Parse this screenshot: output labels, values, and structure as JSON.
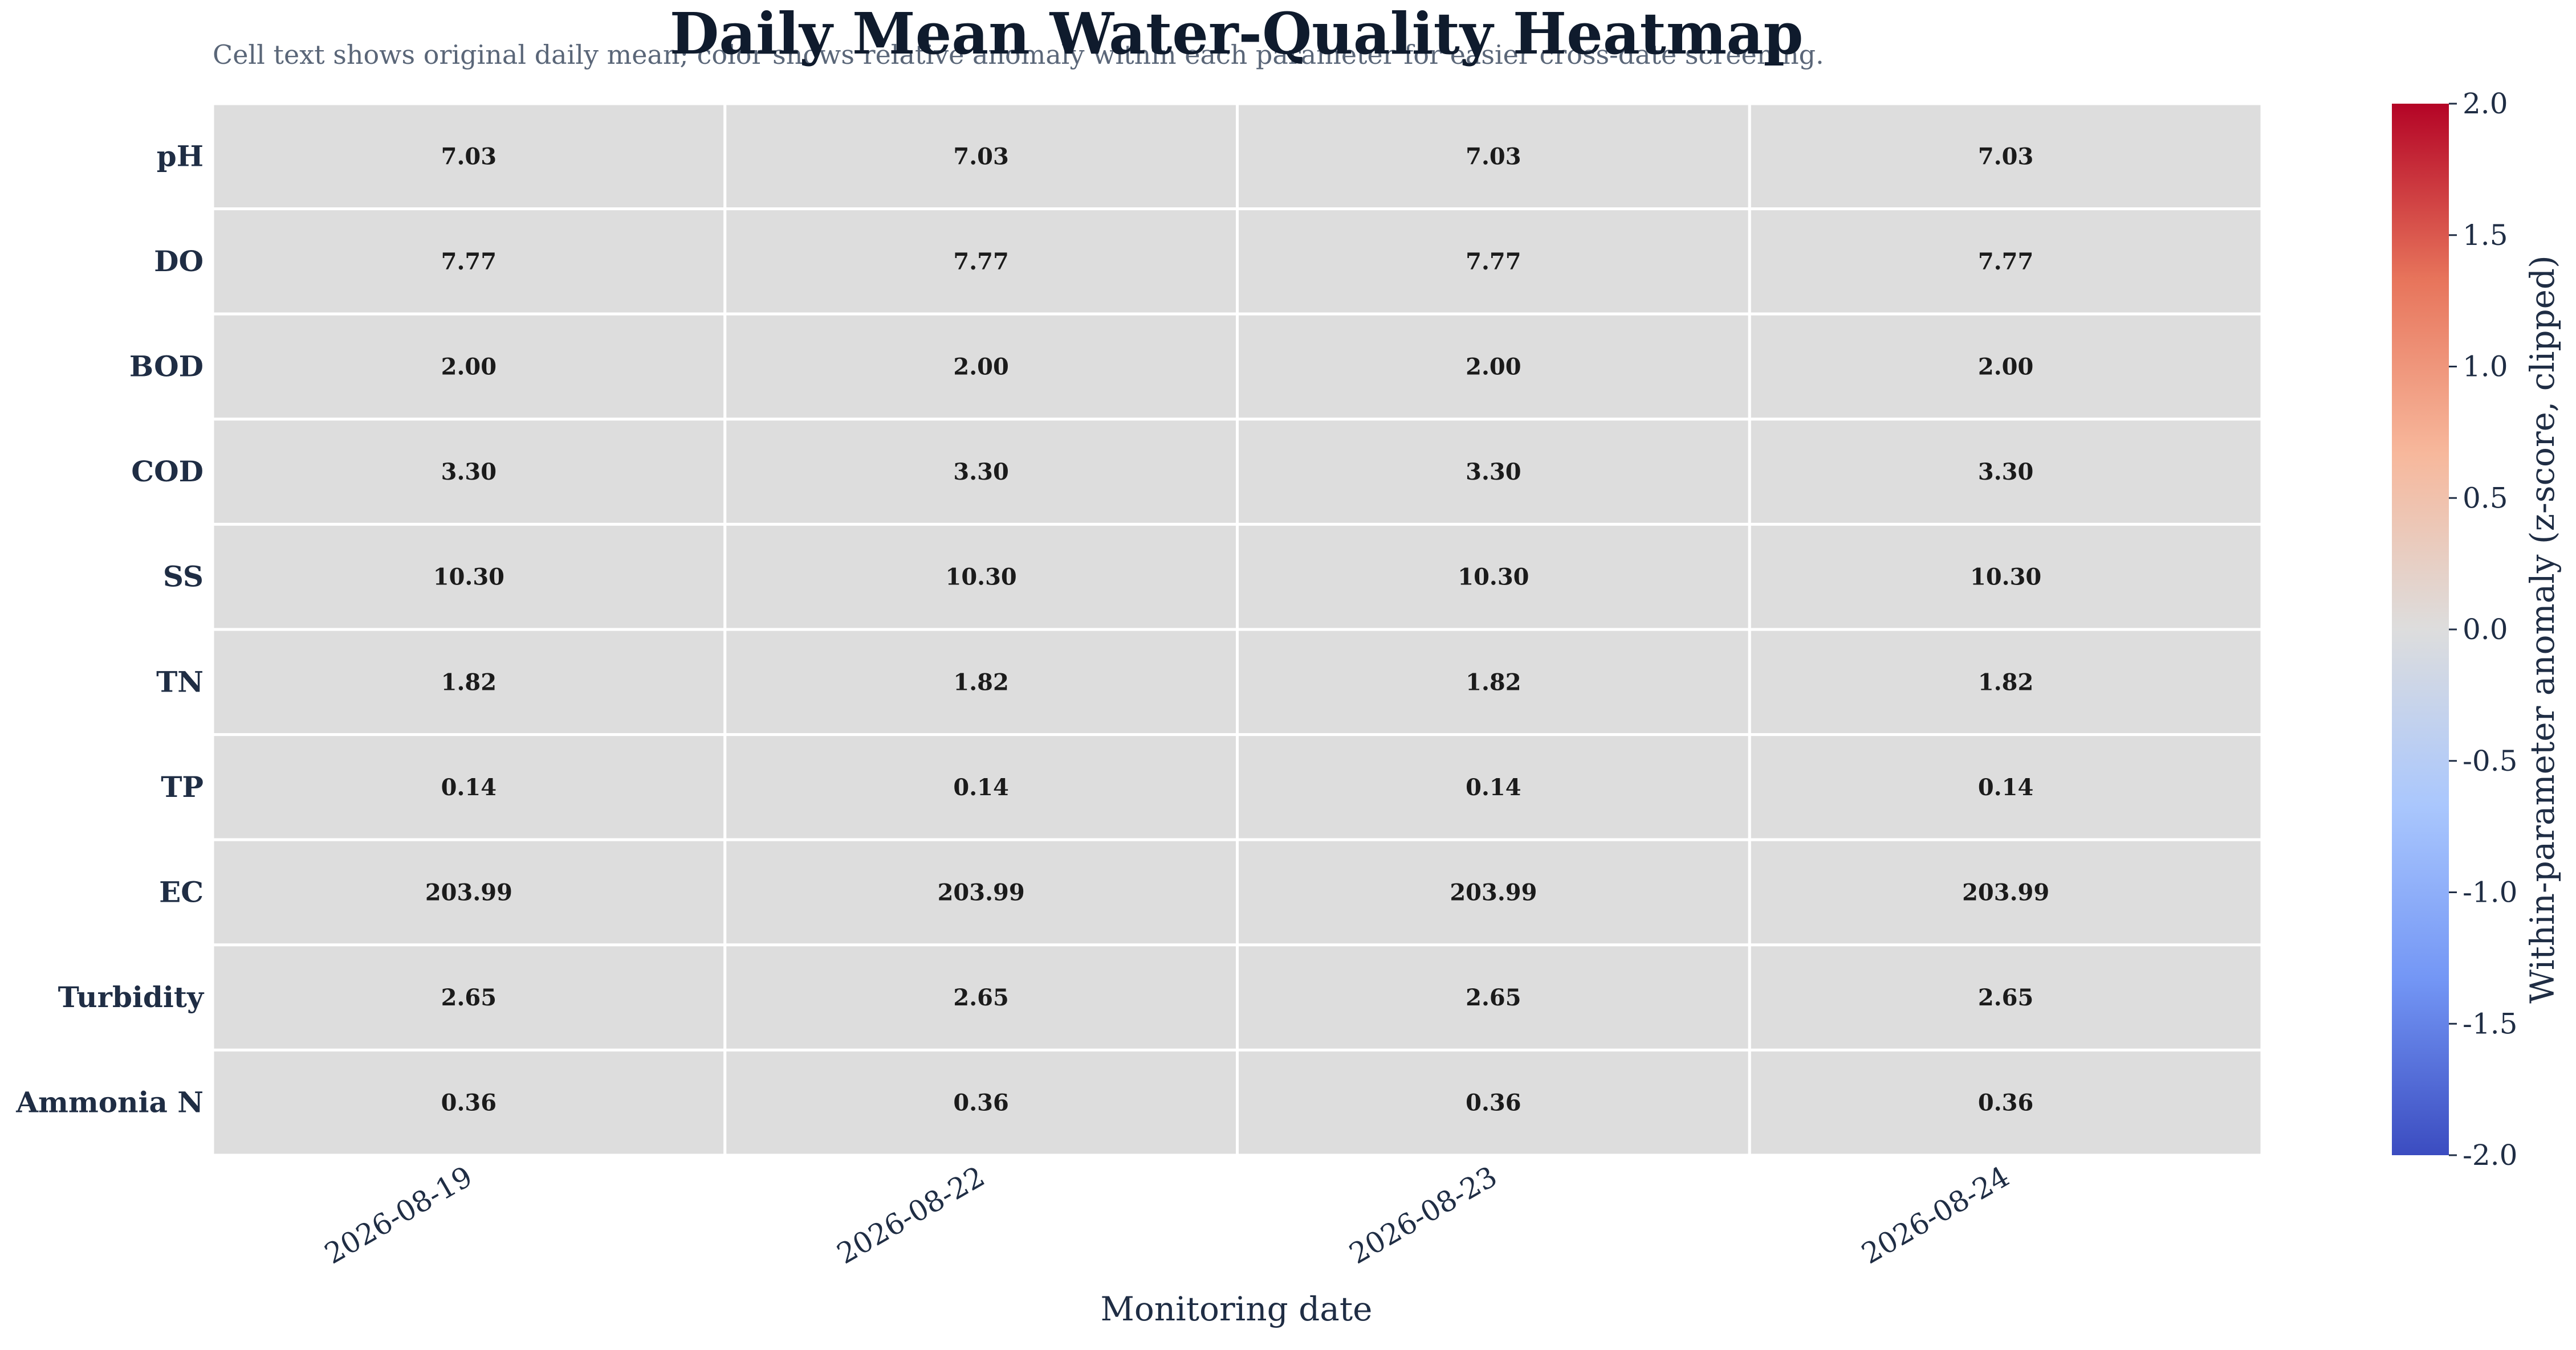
{
  "chart_data": {
    "type": "heatmap",
    "title": "Daily Mean Water-Quality Heatmap",
    "subtitle": "Cell text shows original daily mean; color shows relative anomaly within each parameter for easier cross-date screening.",
    "xlabel": "Monitoring date",
    "ylabel": "",
    "x": [
      "2026-08-19",
      "2026-08-22",
      "2026-08-23",
      "2026-08-24"
    ],
    "y": [
      "pH",
      "DO",
      "BOD",
      "COD",
      "SS",
      "TN",
      "TP",
      "EC",
      "Turbidity",
      "Ammonia N"
    ],
    "values": [
      [
        "7.03",
        "7.03",
        "7.03",
        "7.03"
      ],
      [
        "7.77",
        "7.77",
        "7.77",
        "7.77"
      ],
      [
        "2.00",
        "2.00",
        "2.00",
        "2.00"
      ],
      [
        "3.30",
        "3.30",
        "3.30",
        "3.30"
      ],
      [
        "10.30",
        "10.30",
        "10.30",
        "10.30"
      ],
      [
        "1.82",
        "1.82",
        "1.82",
        "1.82"
      ],
      [
        "0.14",
        "0.14",
        "0.14",
        "0.14"
      ],
      [
        "203.99",
        "203.99",
        "203.99",
        "203.99"
      ],
      [
        "2.65",
        "2.65",
        "2.65",
        "2.65"
      ],
      [
        "0.36",
        "0.36",
        "0.36",
        "0.36"
      ]
    ],
    "anomaly": [
      [
        0,
        0,
        0,
        0
      ],
      [
        0,
        0,
        0,
        0
      ],
      [
        0,
        0,
        0,
        0
      ],
      [
        0,
        0,
        0,
        0
      ],
      [
        0,
        0,
        0,
        0
      ],
      [
        0,
        0,
        0,
        0
      ],
      [
        0,
        0,
        0,
        0
      ],
      [
        0,
        0,
        0,
        0
      ],
      [
        0,
        0,
        0,
        0
      ],
      [
        0,
        0,
        0,
        0
      ]
    ],
    "colorbar": {
      "label": "Within-parameter anomaly (z-score, clipped)",
      "range": [
        -2.0,
        2.0
      ],
      "ticks": [
        "2.0",
        "1.5",
        "1.0",
        "0.5",
        "0.0",
        "-0.5",
        "-1.0",
        "-1.5",
        "-2.0"
      ],
      "colormap": "coolwarm",
      "colors": [
        "#3b4cc0",
        "#7396f5",
        "#aac7fd",
        "#dddddd",
        "#f7b89c",
        "#e7745b",
        "#b40426"
      ]
    },
    "grid": false
  }
}
